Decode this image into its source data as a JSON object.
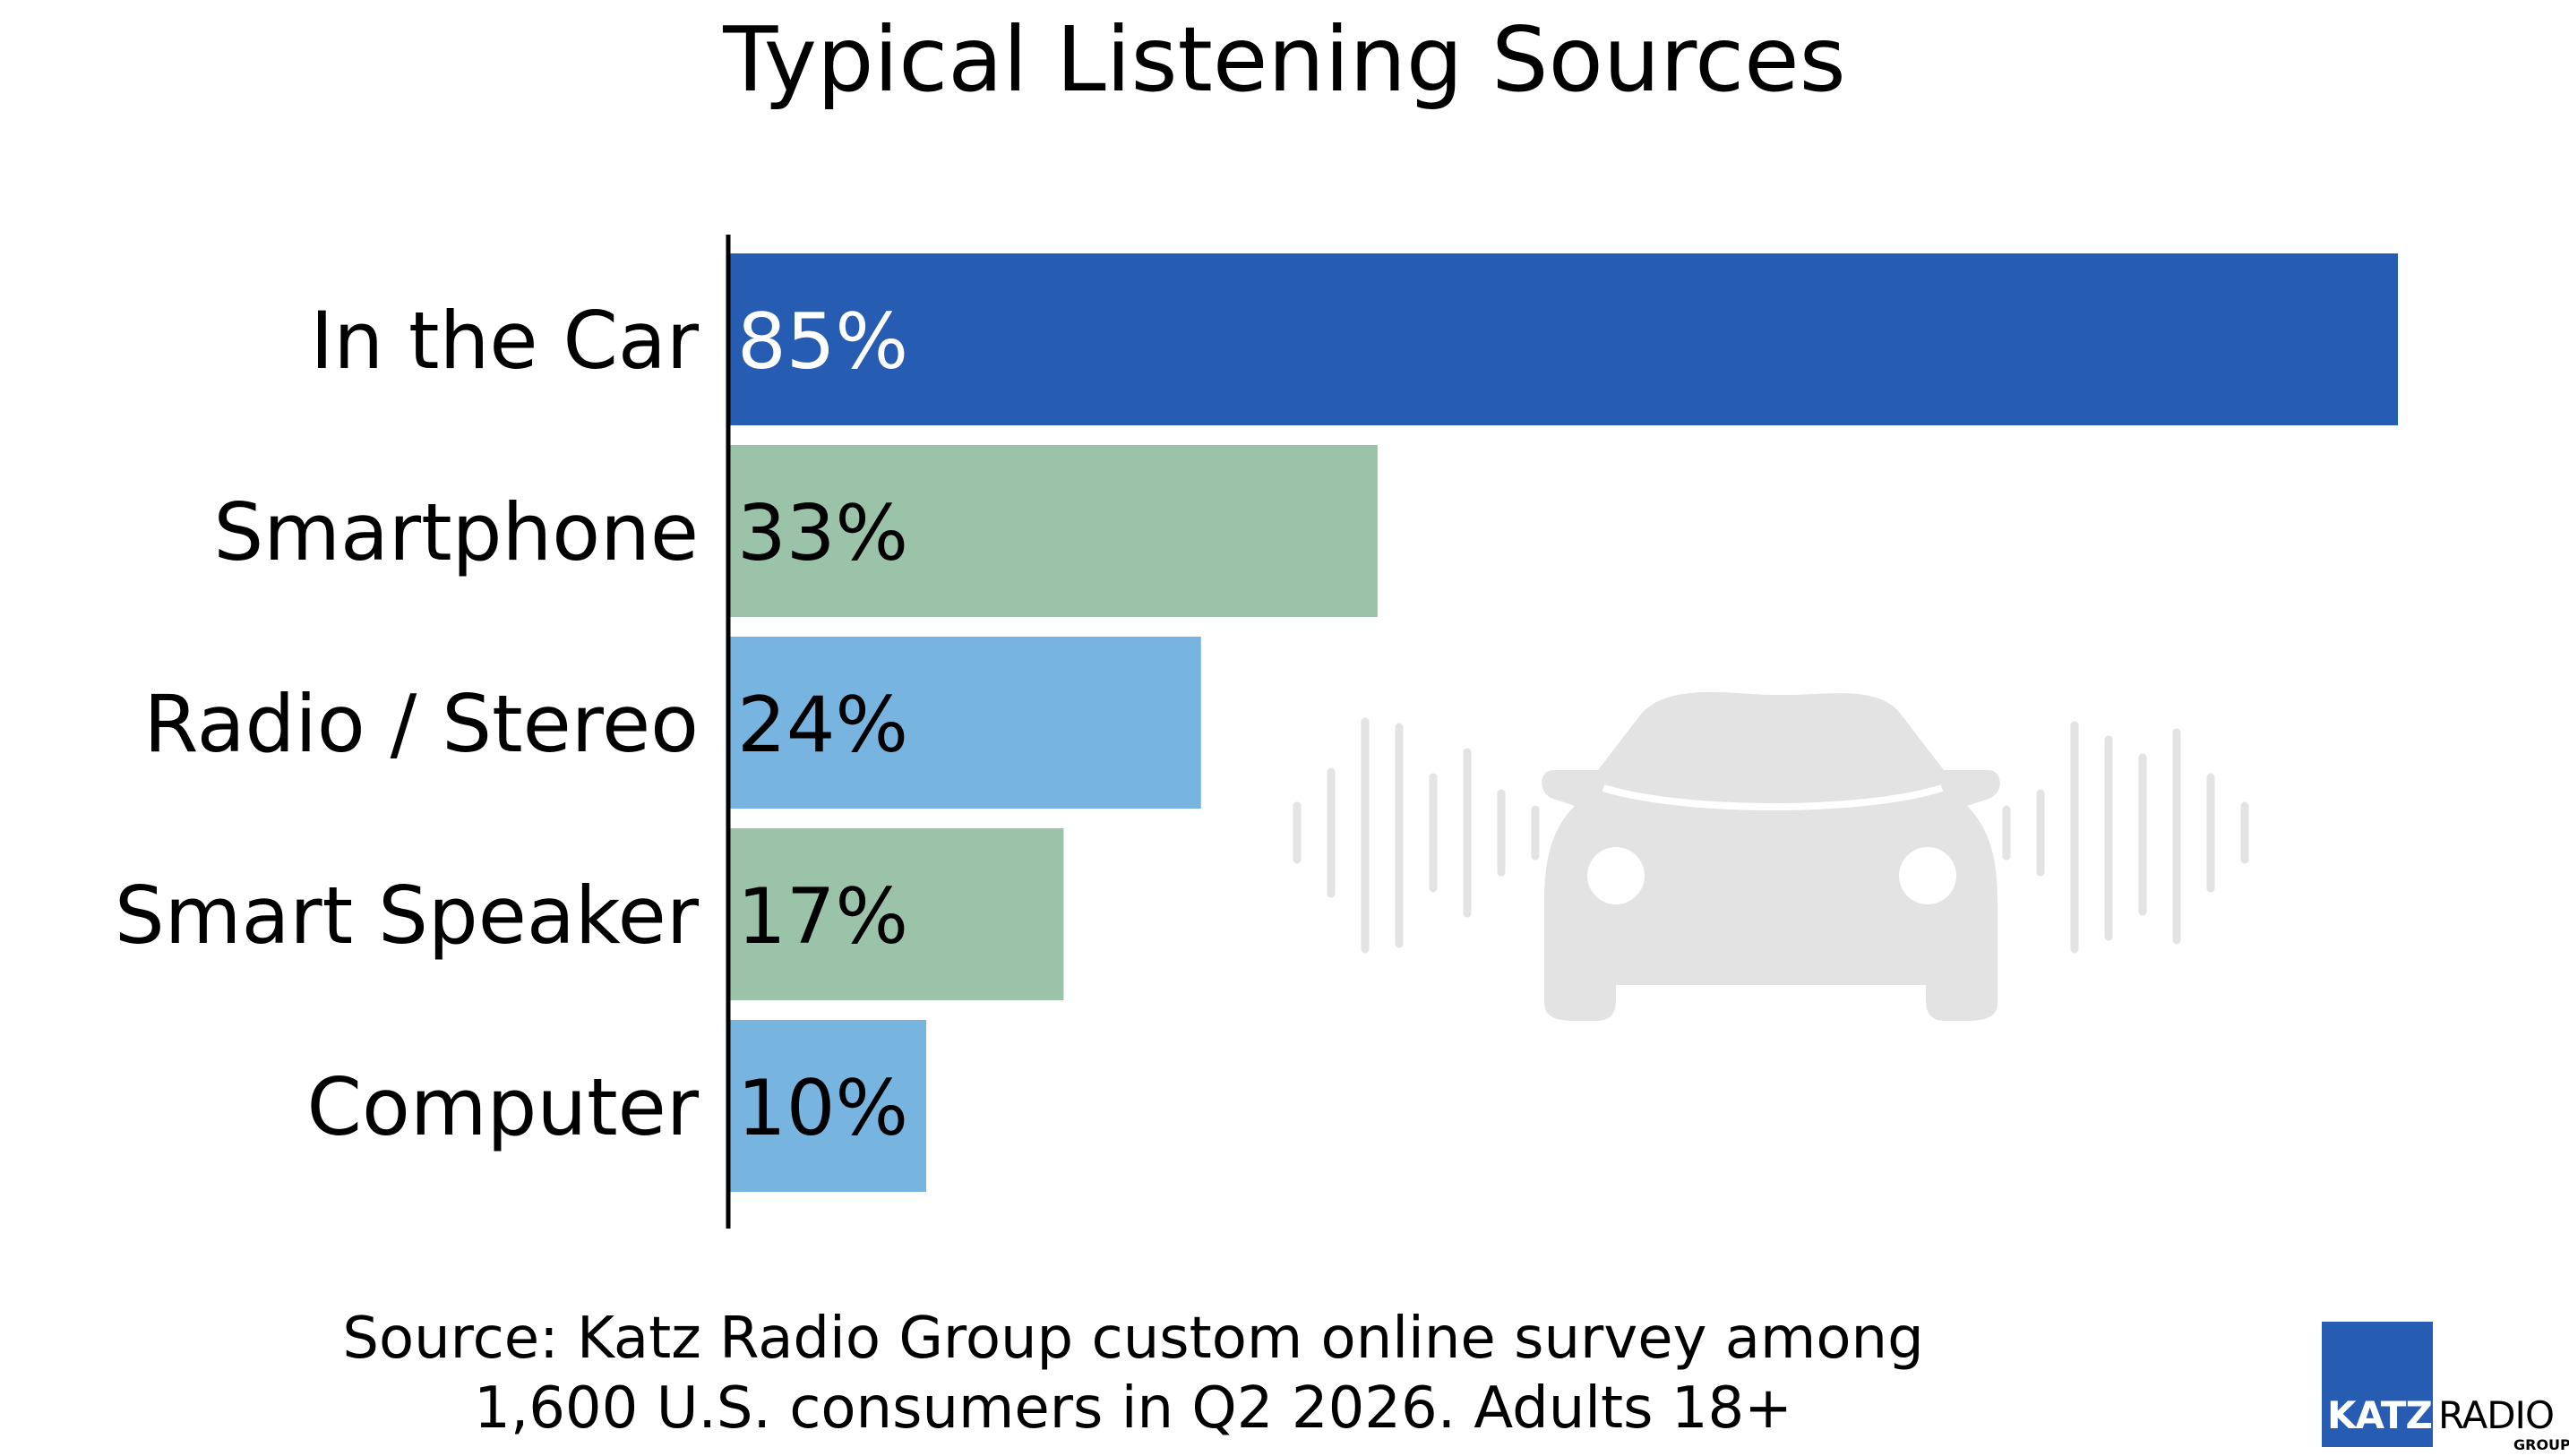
{
  "chart_data": {
    "type": "bar",
    "orientation": "horizontal",
    "title": "Typical Listening Sources",
    "categories": [
      "In the Car",
      "Smartphone",
      "Radio / Stereo",
      "Smart Speaker",
      "Computer"
    ],
    "values": [
      85,
      33,
      24,
      17,
      10
    ],
    "value_labels": [
      "85%",
      "33%",
      "24%",
      "17%",
      "10%"
    ],
    "unit": "%",
    "xlim": [
      0,
      100
    ],
    "grid": false,
    "legend": "none",
    "bar_colors": [
      "#265cb2",
      "#9bc3a9",
      "#78b4e0",
      "#9bc3a9",
      "#78b4e0"
    ],
    "value_label_colors": [
      "#ffffff",
      "#000000",
      "#000000",
      "#000000",
      "#000000"
    ]
  },
  "source_note": {
    "line1": "Source: Katz Radio Group custom online survey among",
    "line2": "1,600 U.S. consumers in Q2 2026. Adults 18+"
  },
  "logo": {
    "katz": "KATZ",
    "radio": "RADIO",
    "group": "GROUP",
    "block_color": "#265cb2"
  },
  "illustration": {
    "icon": "car-front-icon",
    "sound_waves": "sound-wave-icon",
    "color": "#e3e3e3"
  }
}
